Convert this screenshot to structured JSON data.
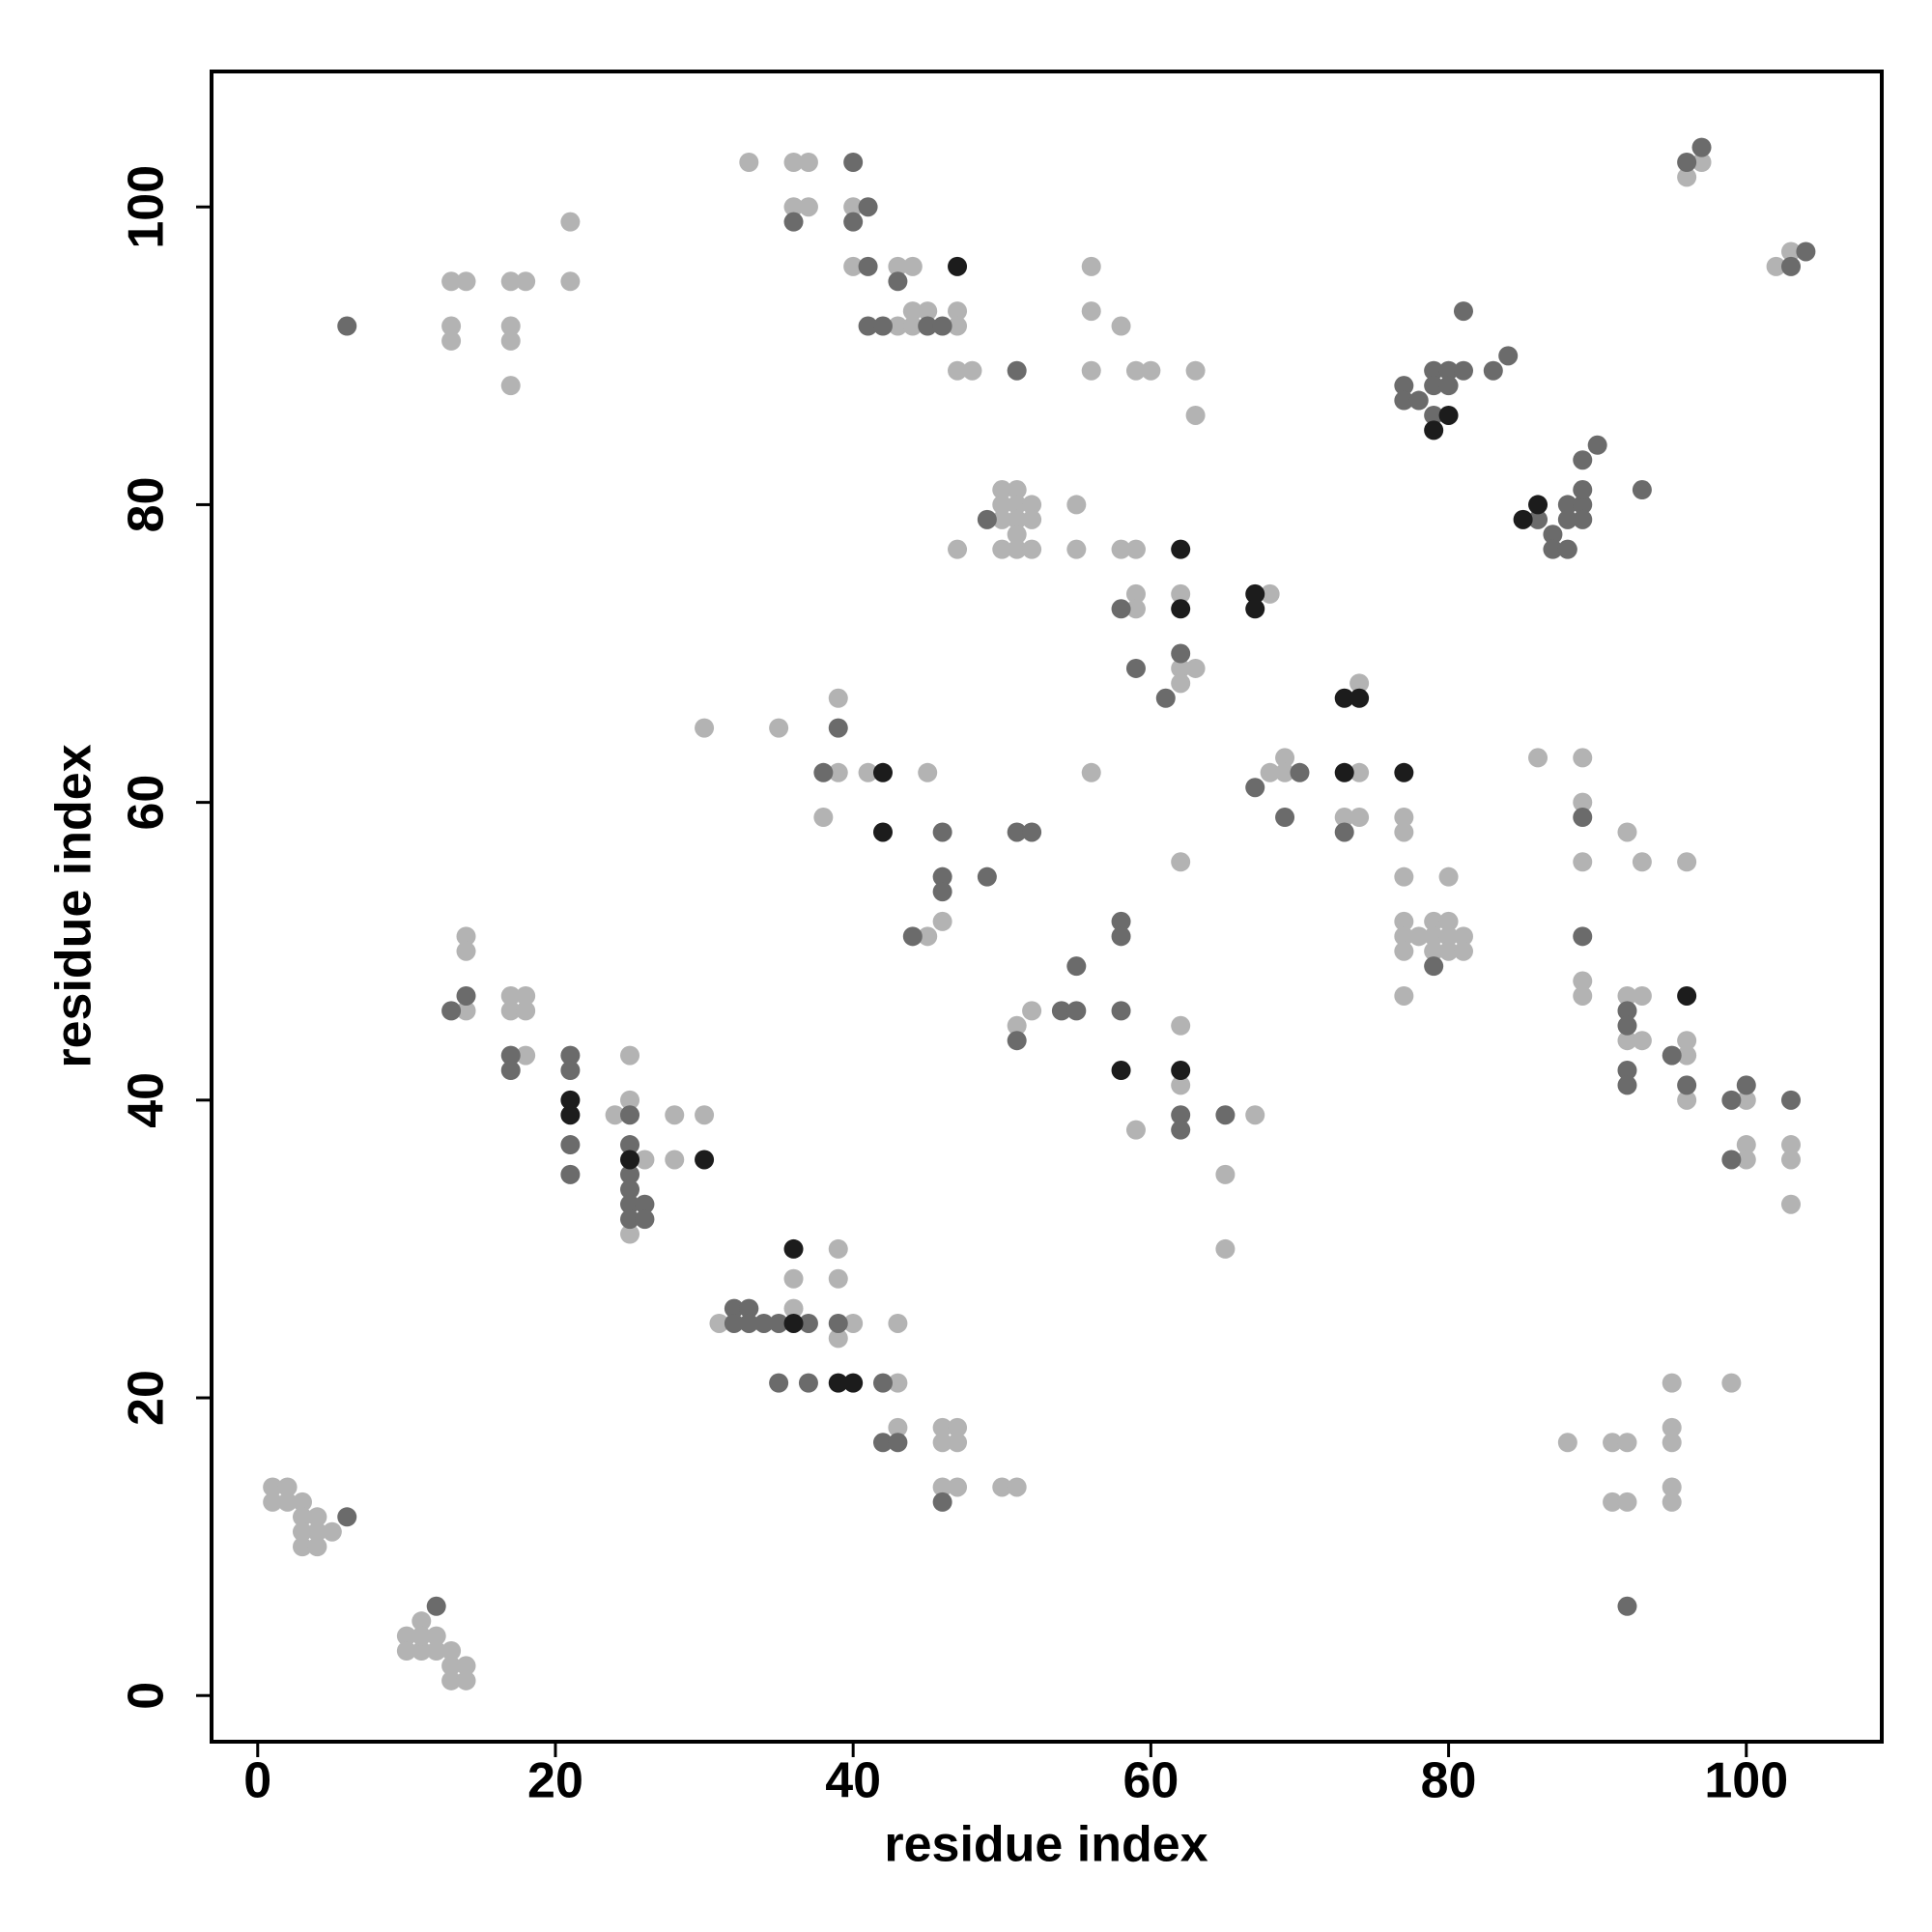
{
  "chart_data": {
    "type": "scatter",
    "xlabel": "residue index",
    "ylabel": "residue index",
    "xlim": [
      -3.1,
      109.1
    ],
    "ylim": [
      -3.1,
      109.1
    ],
    "xticks": [
      0,
      20,
      40,
      60,
      80,
      100
    ],
    "yticks": [
      0,
      20,
      40,
      60,
      80,
      100
    ],
    "series": [
      {
        "color": "#b3b3b3",
        "x": [
          1,
          2,
          1,
          2,
          3,
          3,
          4,
          3,
          4,
          5,
          3,
          4,
          10,
          11,
          12,
          10,
          11,
          12,
          13,
          13,
          14,
          13,
          14,
          11,
          13,
          14,
          13,
          13,
          17,
          18,
          17,
          17,
          17,
          21,
          21,
          33,
          36,
          37,
          36,
          37,
          40,
          40,
          43,
          44,
          44,
          45,
          47,
          43,
          44,
          47,
          47,
          48,
          56,
          56,
          58,
          56,
          59,
          60,
          63,
          63,
          50,
          51,
          50,
          51,
          52,
          50,
          51,
          52,
          51,
          50,
          51,
          52,
          47,
          55,
          55,
          58,
          59,
          59,
          59,
          62,
          62,
          63,
          62,
          68,
          97,
          96,
          102,
          103,
          30,
          35,
          39,
          39,
          41,
          45,
          38,
          46,
          45,
          56,
          51,
          52,
          62,
          62,
          59,
          62,
          67,
          65,
          65,
          68,
          69,
          69,
          74,
          74,
          73,
          74,
          77,
          77,
          77,
          77,
          77,
          77,
          78,
          79,
          79,
          79,
          80,
          80,
          80,
          81,
          81,
          80,
          77,
          86,
          89,
          89,
          89,
          92,
          93,
          96,
          89,
          89,
          92,
          93,
          92,
          93,
          96,
          96,
          96,
          100,
          100,
          100,
          103,
          103,
          103,
          88,
          91,
          92,
          91,
          92,
          95,
          95,
          95,
          95,
          95,
          99,
          14,
          14,
          14,
          17,
          18,
          17,
          18,
          18,
          24,
          25,
          25,
          26,
          25,
          28,
          30,
          28,
          31,
          36,
          36,
          39,
          39,
          40,
          39,
          43,
          43,
          43,
          46,
          47,
          46,
          47,
          46,
          47,
          50,
          51
        ],
        "y": [
          14,
          14,
          13,
          13,
          13,
          12,
          12,
          11,
          11,
          11,
          10,
          10,
          4,
          5,
          4,
          3,
          3,
          3,
          3,
          2,
          2,
          1,
          1,
          4,
          95,
          95,
          92,
          91,
          95,
          95,
          92,
          91,
          88,
          99,
          95,
          103,
          103,
          103,
          100,
          100,
          100,
          96,
          96,
          96,
          93,
          93,
          93,
          92,
          92,
          92,
          89,
          89,
          96,
          93,
          92,
          89,
          89,
          89,
          89,
          86,
          81,
          81,
          80,
          80,
          80,
          79,
          79,
          79,
          78,
          77,
          77,
          77,
          77,
          80,
          77,
          77,
          77,
          74,
          73,
          74,
          69,
          69,
          68,
          74,
          103,
          102,
          96,
          97,
          65,
          65,
          67,
          62,
          62,
          62,
          59,
          52,
          51,
          62,
          45,
          46,
          45,
          41,
          38,
          56,
          39,
          35,
          30,
          62,
          63,
          62,
          68,
          62,
          59,
          59,
          59,
          58,
          55,
          52,
          51,
          50,
          51,
          52,
          51,
          50,
          52,
          51,
          50,
          51,
          50,
          55,
          47,
          63,
          63,
          60,
          56,
          58,
          56,
          56,
          48,
          47,
          47,
          47,
          44,
          44,
          44,
          43,
          40,
          40,
          37,
          36,
          37,
          36,
          33,
          17,
          17,
          17,
          13,
          13,
          21,
          18,
          17,
          14,
          13,
          21,
          51,
          50,
          46,
          47,
          47,
          46,
          46,
          43,
          39,
          43,
          40,
          36,
          31,
          39,
          39,
          36,
          25,
          28,
          26,
          30,
          28,
          25,
          24,
          21,
          25,
          18,
          18,
          18,
          17,
          17,
          14,
          14,
          14,
          14
        ]
      },
      {
        "color": "#6b6b6b",
        "x": [
          6,
          12,
          6,
          36,
          40,
          41,
          40,
          41,
          43,
          41,
          42,
          45,
          46,
          51,
          49,
          58,
          62,
          59,
          61,
          96,
          97,
          103,
          104,
          77,
          77,
          78,
          79,
          80,
          79,
          80,
          81,
          79,
          81,
          83,
          84,
          86,
          88,
          89,
          89,
          88,
          89,
          89,
          90,
          87,
          87,
          88,
          93,
          39,
          38,
          46,
          46,
          46,
          49,
          44,
          51,
          52,
          51,
          54,
          55,
          55,
          58,
          58,
          58,
          62,
          62,
          65,
          67,
          70,
          69,
          73,
          79,
          89,
          89,
          92,
          92,
          92,
          92,
          95,
          96,
          99,
          100,
          99,
          103,
          92,
          13,
          14,
          17,
          17,
          21,
          21,
          21,
          21,
          25,
          25,
          25,
          25,
          25,
          26,
          25,
          26,
          32,
          33,
          32,
          33,
          34,
          35,
          37,
          39,
          35,
          37,
          42,
          42,
          43,
          46
        ],
        "y": [
          12,
          6,
          92,
          99,
          103,
          100,
          99,
          96,
          95,
          92,
          92,
          92,
          92,
          89,
          79,
          73,
          70,
          69,
          67,
          103,
          104,
          96,
          97,
          88,
          87,
          87,
          89,
          89,
          88,
          88,
          89,
          86,
          93,
          89,
          90,
          79,
          80,
          80,
          79,
          79,
          81,
          83,
          84,
          78,
          77,
          77,
          81,
          65,
          62,
          58,
          55,
          54,
          55,
          51,
          58,
          58,
          44,
          46,
          46,
          49,
          52,
          51,
          46,
          39,
          38,
          39,
          61,
          62,
          59,
          58,
          49,
          59,
          51,
          46,
          45,
          42,
          41,
          43,
          41,
          40,
          41,
          36,
          40,
          6,
          46,
          47,
          43,
          42,
          43,
          42,
          37,
          35,
          39,
          37,
          35,
          34,
          33,
          33,
          32,
          32,
          26,
          26,
          25,
          25,
          25,
          25,
          25,
          25,
          21,
          21,
          21,
          17,
          17,
          13
        ]
      },
      {
        "color": "#1c1c1c",
        "x": [
          47,
          62,
          62,
          67,
          67,
          80,
          79,
          85,
          86,
          42,
          42,
          58,
          62,
          73,
          74,
          73,
          77,
          96,
          21,
          21,
          25,
          30,
          36,
          36,
          39,
          40
        ],
        "y": [
          96,
          77,
          73,
          74,
          73,
          86,
          85,
          79,
          80,
          62,
          58,
          42,
          42,
          67,
          67,
          62,
          62,
          47,
          40,
          39,
          36,
          36,
          25,
          30,
          21,
          21
        ]
      }
    ]
  }
}
